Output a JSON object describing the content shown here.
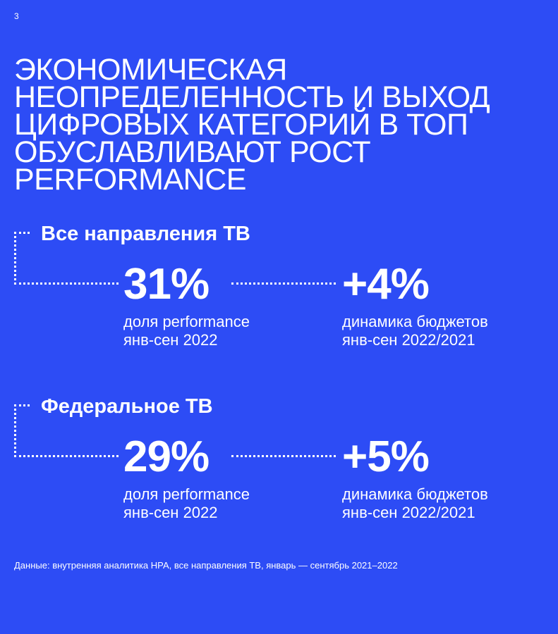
{
  "page_number": "3",
  "headline": "ЭКОНОМИЧЕСКАЯ НЕОПРЕДЕЛЕННОСТЬ И ВЫХОД ЦИФРОВЫХ КАТЕГОРИЙ В ТОП ОБУСЛАВЛИВАЮТ РОСТ PERFORMANCE",
  "sections": [
    {
      "title": "Все направления ТВ",
      "share": {
        "value": "31%",
        "label_line1": "доля performance",
        "label_line2": "янв-сен 2022"
      },
      "dynamics": {
        "value": "+4%",
        "label_line1": "динамика бюджетов",
        "label_line2": "янв-сен 2022/2021"
      }
    },
    {
      "title": "Федеральное ТВ",
      "share": {
        "value": "29%",
        "label_line1": "доля performance",
        "label_line2": "янв-сен 2022"
      },
      "dynamics": {
        "value": "+5%",
        "label_line1": "динамика бюджетов",
        "label_line2": "янв-сен 2022/2021"
      }
    }
  ],
  "footnote": "Данные: внутренняя аналитика НРА, все направления ТВ, январь — сентябрь 2021–2022",
  "colors": {
    "background": "#2d4cf5",
    "text": "#ffffff"
  }
}
